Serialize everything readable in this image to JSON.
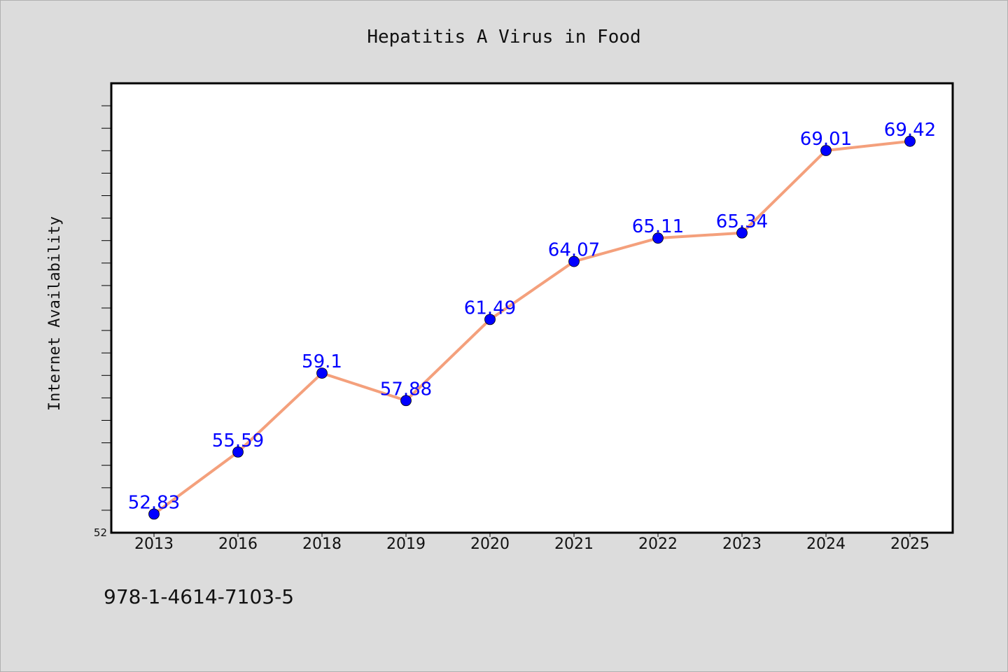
{
  "chart_data": {
    "type": "line",
    "title": "Hepatitis A Virus in Food",
    "xlabel": "",
    "ylabel": "Internet Availability",
    "categories": [
      "2013",
      "2016",
      "2018",
      "2019",
      "2020",
      "2021",
      "2022",
      "2023",
      "2024",
      "2025"
    ],
    "series": [
      {
        "values": [
          52.83,
          55.59,
          59.1,
          57.88,
          61.49,
          64.07,
          65.11,
          65.34,
          69.01,
          69.42
        ],
        "labels": [
          "52.83",
          "55.59",
          "59.1",
          "57.88",
          "61.49",
          "64.07",
          "65.11",
          "65.34",
          "69.01",
          "69.42"
        ],
        "line_color": "#f4a07c",
        "marker_color": "#0000ff",
        "label_color": "#0000ff"
      }
    ],
    "ylim": [
      52,
      72
    ],
    "y_tick_labels": [
      "52"
    ],
    "grid": false,
    "legend": "none"
  },
  "footer": {
    "isbn": "978-1-4614-7103-5"
  },
  "colors": {
    "background": "#dcdcdc",
    "plot_background": "#ffffff",
    "axis": "#000000"
  }
}
